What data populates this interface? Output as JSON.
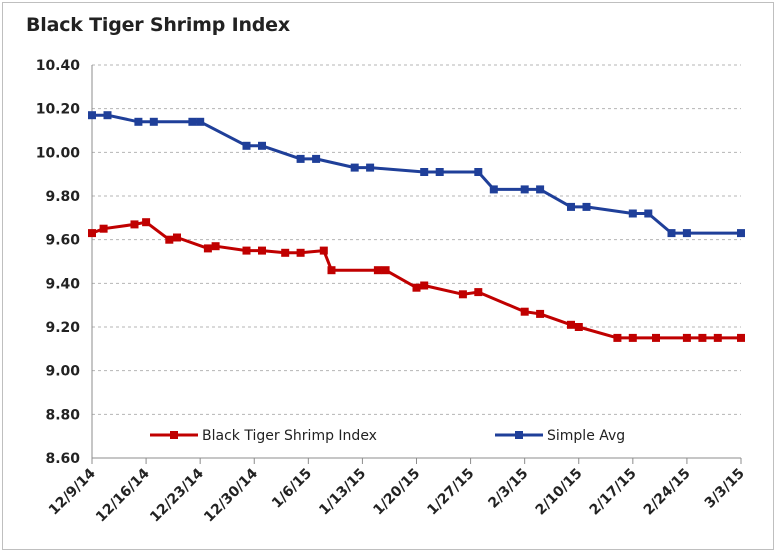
{
  "chart_data": {
    "type": "line",
    "title": "Black Tiger Shrimp Index",
    "xlabel": "",
    "ylabel": "",
    "ylim": [
      8.6,
      10.4
    ],
    "yticks": [
      "8.60",
      "8.80",
      "9.00",
      "9.20",
      "9.40",
      "9.60",
      "9.80",
      "10.00",
      "10.20",
      "10.40"
    ],
    "tick_labels": [
      "12/9/14",
      "12/16/14",
      "12/23/14",
      "12/30/14",
      "1/6/15",
      "1/13/15",
      "1/20/15",
      "1/27/15",
      "2/3/15",
      "2/10/15",
      "2/17/15",
      "2/24/15",
      "3/3/15"
    ],
    "x_unit": "days from 12/9/14",
    "grid": "horizontal dashed",
    "legend_position": "bottom",
    "series": [
      {
        "name": "Black Tiger Shrimp Index",
        "color": "#c00000",
        "x": [
          0,
          1.5,
          5.5,
          7,
          10,
          11,
          15,
          16,
          20,
          22,
          25,
          27,
          30,
          31,
          37,
          38,
          42,
          43,
          48,
          50,
          56,
          58,
          62,
          63,
          68,
          70,
          73,
          77,
          79,
          81,
          84
        ],
        "y": [
          9.63,
          9.65,
          9.67,
          9.68,
          9.6,
          9.61,
          9.56,
          9.57,
          9.55,
          9.55,
          9.54,
          9.54,
          9.55,
          9.46,
          9.46,
          9.46,
          9.38,
          9.39,
          9.35,
          9.36,
          9.27,
          9.26,
          9.21,
          9.2,
          9.15,
          9.15,
          9.15,
          9.15,
          9.15,
          9.15,
          9.15
        ]
      },
      {
        "name": "Simple Avg",
        "color": "#1f3f99",
        "x": [
          0,
          2,
          6,
          8,
          13,
          14,
          20,
          22,
          27,
          29,
          34,
          36,
          43,
          45,
          50,
          52,
          56,
          58,
          62,
          64,
          70,
          72,
          75,
          77,
          84
        ],
        "y": [
          10.17,
          10.17,
          10.14,
          10.14,
          10.14,
          10.14,
          10.03,
          10.03,
          9.97,
          9.97,
          9.93,
          9.93,
          9.91,
          9.91,
          9.91,
          9.83,
          9.83,
          9.83,
          9.75,
          9.75,
          9.72,
          9.72,
          9.63,
          9.63,
          9.63
        ]
      }
    ]
  }
}
